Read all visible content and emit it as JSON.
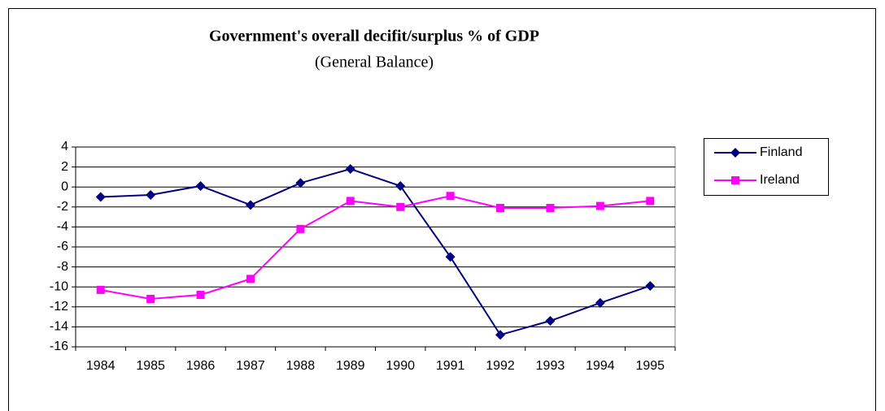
{
  "chart_data": {
    "type": "line",
    "title": "Government's overall decifit/surplus % of GDP",
    "subtitle": "(General Balance)",
    "categories": [
      "1984",
      "1985",
      "1986",
      "1987",
      "1988",
      "1989",
      "1990",
      "1991",
      "1992",
      "1993",
      "1994",
      "1995"
    ],
    "series": [
      {
        "name": "Finland",
        "color": "#000080",
        "marker": "diamond",
        "values": [
          -1.0,
          -0.8,
          0.1,
          -1.8,
          0.4,
          1.8,
          0.1,
          -7.0,
          -14.8,
          -13.4,
          -11.6,
          -9.9
        ]
      },
      {
        "name": "Ireland",
        "color": "#ff00ff",
        "marker": "square",
        "values": [
          -10.3,
          -11.2,
          -10.8,
          -9.2,
          -4.2,
          -1.4,
          -2.0,
          -0.9,
          -2.1,
          -2.1,
          -1.9,
          -1.4
        ]
      }
    ],
    "ylim": [
      -16,
      4
    ],
    "yticks": [
      -16,
      -14,
      -12,
      -10,
      -8,
      -6,
      -4,
      -2,
      0,
      2,
      4
    ],
    "grid": true,
    "legend": "right"
  }
}
